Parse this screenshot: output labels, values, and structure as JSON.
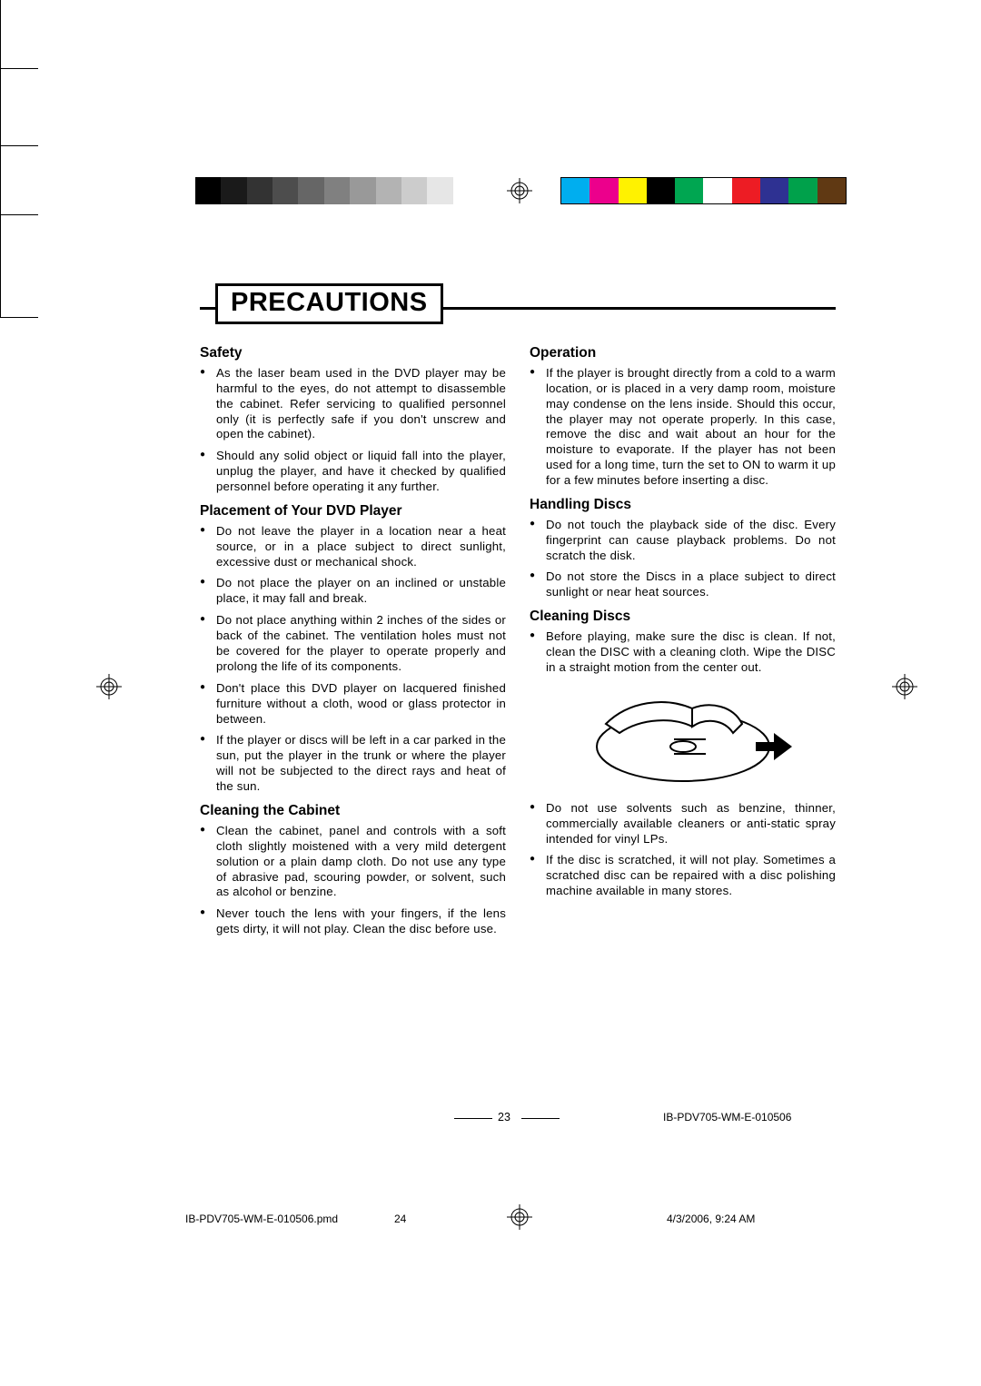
{
  "crop_marks": {
    "color": "#000000"
  },
  "color_bars": {
    "left_grays": [
      "#000000",
      "#1a1a1a",
      "#333333",
      "#4d4d4d",
      "#666666",
      "#808080",
      "#999999",
      "#b3b3b3",
      "#cccccc",
      "#e6e6e6",
      "#ffffff"
    ],
    "right_colors": [
      "#00aeef",
      "#ec008c",
      "#fff200",
      "#000000",
      "#00a651",
      "#ffffff",
      "#ed1c24",
      "#2e3192",
      "#00a14b",
      "#603913"
    ],
    "right_border": "#000000"
  },
  "registration_mark": {
    "stroke": "#000000"
  },
  "page": {
    "title": "PRECAUTIONS",
    "left": {
      "sections": [
        {
          "heading": "Safety",
          "items": [
            "As the laser beam used in the DVD player may be harmful to the eyes, do not attempt to disassemble the cabinet. Refer servicing to qualified personnel only (it is perfectly safe if you don't unscrew and open the cabinet).",
            "Should any solid object or liquid fall into the player, unplug the player, and have it checked by qualified personnel before operating it any further."
          ]
        },
        {
          "heading": "Placement of Your DVD Player",
          "items": [
            "Do not leave the player in a location near a heat source, or in a place subject to direct sunlight, excessive dust or mechanical shock.",
            "Do not place the player on an inclined or unstable place, it may fall and break.",
            "Do not place anything within 2 inches of the sides or back of the cabinet. The ventilation holes must not be covered for the player to operate properly and prolong the life of its components.",
            "Don't place this DVD player on lacquered finished furniture without a cloth, wood or glass protector in between.",
            "If the player or discs will be left in a car parked in the sun, put the player in the trunk or where the player will not be subjected to the direct rays and heat of the sun."
          ]
        },
        {
          "heading": "Cleaning the Cabinet",
          "items": [
            "Clean the cabinet, panel and controls with a soft cloth slightly moistened with a very mild detergent solution or a plain damp cloth. Do not use any type of abrasive pad, scouring powder, or solvent, such as alcohol or benzine.",
            "Never touch the lens with your fingers, if the lens gets dirty, it will not play. Clean the disc before use."
          ]
        }
      ]
    },
    "right": {
      "sections": [
        {
          "heading": "Operation",
          "items": [
            "If the player is brought directly from a cold to a warm location, or is placed in a very damp room, moisture may condense on the lens inside. Should this occur, the player may not operate properly. In this case, remove the disc and wait about an hour for the moisture to evaporate. If the player has not been used for a long time, turn the set to ON to warm it up for a few minutes before inserting a disc."
          ]
        },
        {
          "heading": "Handling Discs",
          "items": [
            "Do not touch the playback side of the disc. Every fingerprint can cause playback problems. Do not scratch the disk.",
            "Do not store the Discs in a place subject to direct sunlight or near heat sources."
          ]
        },
        {
          "heading": "Cleaning Discs",
          "items_before": [
            "Before playing, make sure the disc is clean. If not, clean the DISC with a cleaning cloth. Wipe the DISC in a straight motion from the center out."
          ],
          "items_after": [
            "Do not use solvents such as benzine, thinner, commercially available cleaners or anti-static spray intended for vinyl LPs.",
            "If the disc is scratched, it will not play. Sometimes a scratched disc can be repaired with a disc polishing machine available in many stores."
          ]
        }
      ]
    },
    "page_number": "23",
    "doc_id_right": "IB-PDV705-WM-E-010506"
  },
  "footer": {
    "filename": "IB-PDV705-WM-E-010506.pmd",
    "sheet": "24",
    "timestamp": "4/3/2006, 9:24 AM"
  }
}
